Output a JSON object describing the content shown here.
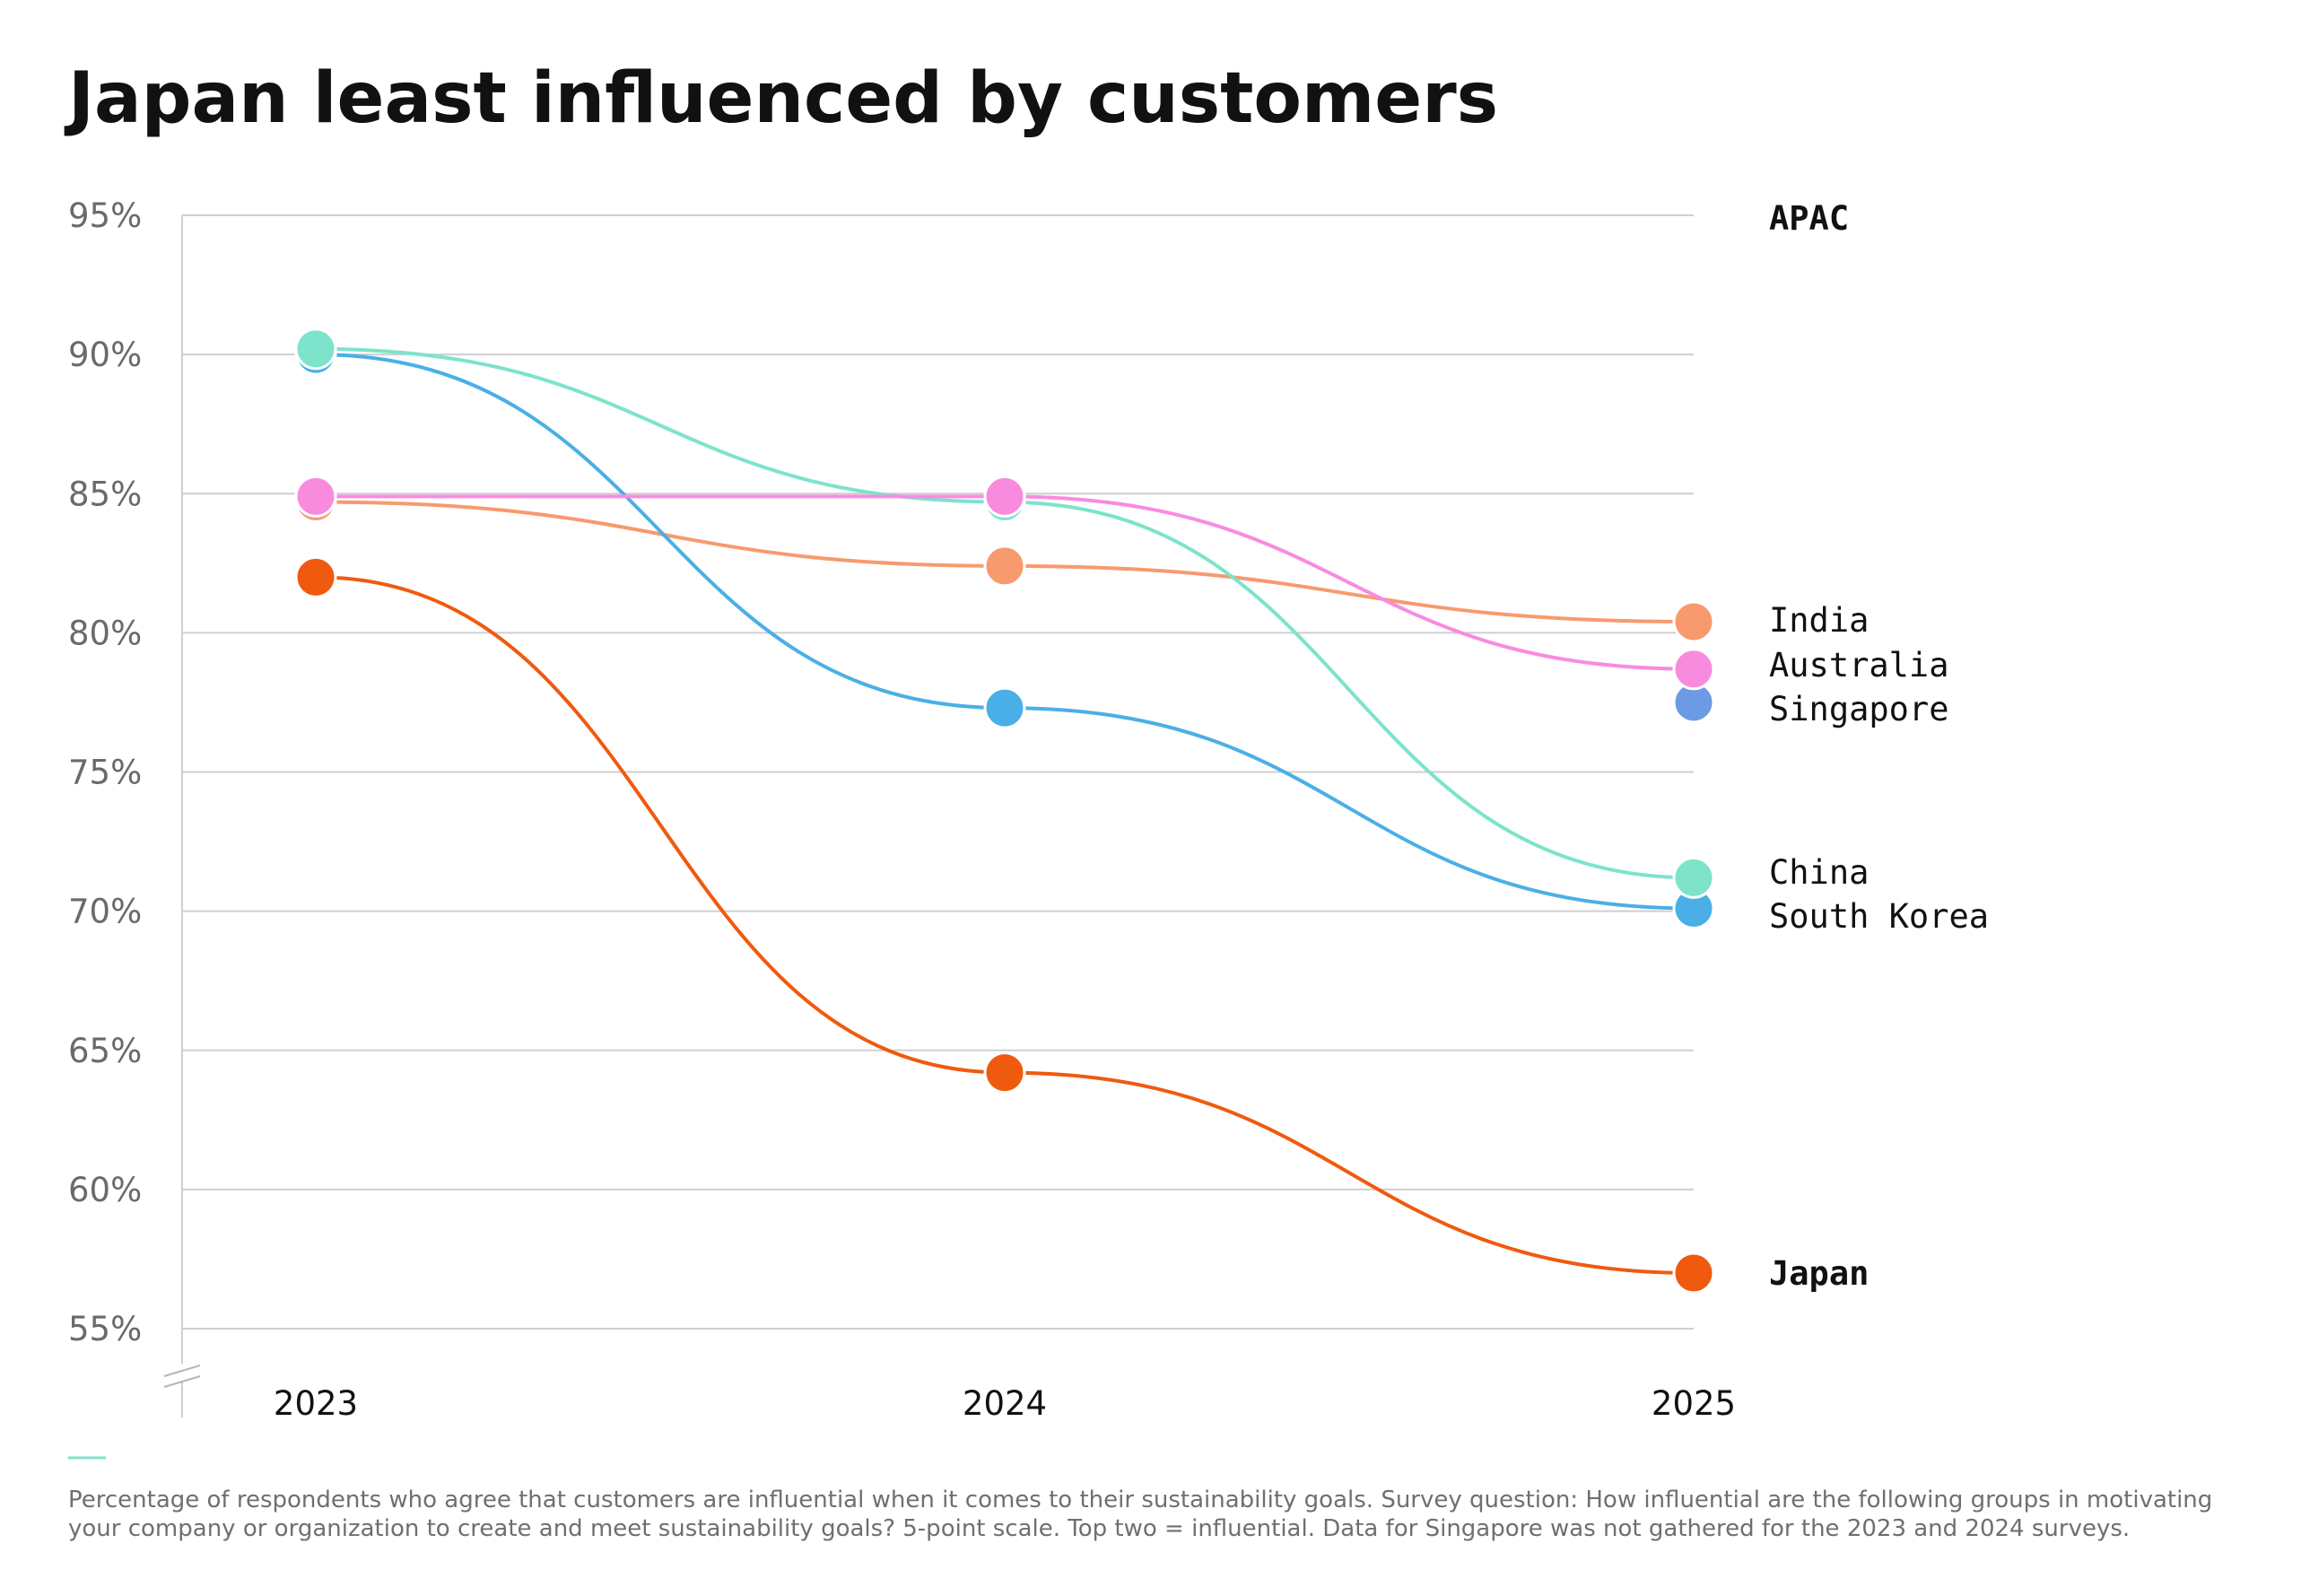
{
  "chart_data": {
    "type": "line",
    "title": "Japan least influenced by customers",
    "x": [
      "2023",
      "2024",
      "2025"
    ],
    "ylim": [
      55,
      95
    ],
    "yticks": [
      95,
      90,
      85,
      80,
      75,
      70,
      65,
      60,
      55
    ],
    "ytick_labels": [
      "95%",
      "90%",
      "85%",
      "80%",
      "75%",
      "70%",
      "65%",
      "60%",
      "55%"
    ],
    "grid": true,
    "group_label": "APAC",
    "series": [
      {
        "name": "India",
        "color": "#F79A6E",
        "values": [
          84.7,
          82.4,
          80.4
        ],
        "bold": false
      },
      {
        "name": "Australia",
        "color": "#F98BDF",
        "values": [
          84.9,
          84.9,
          78.7
        ],
        "bold": false
      },
      {
        "name": "Singapore",
        "color": "#6C9BE4",
        "values": [
          null,
          null,
          77.5
        ],
        "bold": false
      },
      {
        "name": "China",
        "color": "#7DE3CB",
        "values": [
          90.2,
          84.7,
          71.2
        ],
        "bold": false
      },
      {
        "name": "South Korea",
        "color": "#4AAFE6",
        "values": [
          90.0,
          77.3,
          70.1
        ],
        "bold": false
      },
      {
        "name": "Japan",
        "color": "#F05A0E",
        "values": [
          82.0,
          64.2,
          57.0
        ],
        "bold": true
      }
    ],
    "footnote": [
      "Percentage of respondents who agree that customers are influential when it comes to their sustainability goals. Survey question: How influential are the following groups in motivating",
      "your company or organization to create and meet sustainability goals? 5-point scale. Top two = influential. Data for Singapore was not gathered for the 2023 and 2024 surveys."
    ]
  }
}
